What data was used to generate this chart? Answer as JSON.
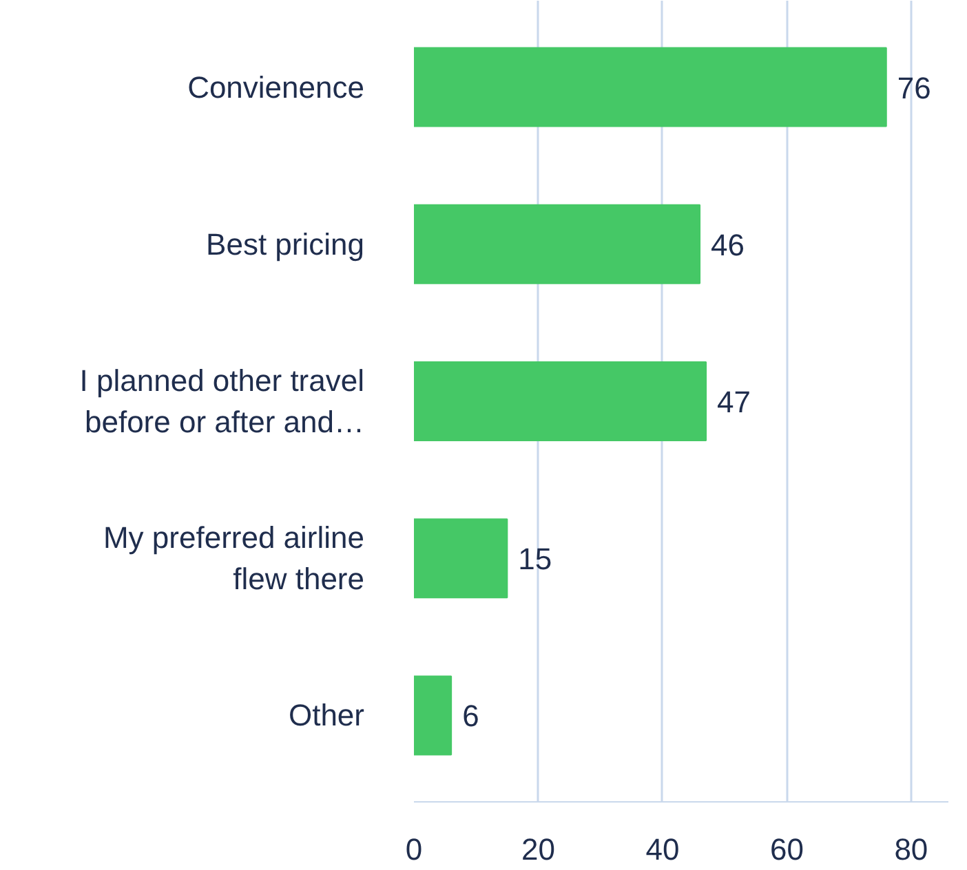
{
  "chart_data": {
    "type": "bar",
    "orientation": "horizontal",
    "categories": [
      "Convienence",
      "Best pricing",
      "I planned other travel\nbefore or after and…",
      "My preferred airline\nflew there",
      "Other"
    ],
    "values": [
      76,
      46,
      47,
      15,
      6
    ],
    "color": "#45c866",
    "xlim": [
      0,
      86
    ],
    "xticks": [
      0,
      20,
      40,
      60,
      80
    ],
    "grid": "x",
    "data_labels": true
  }
}
